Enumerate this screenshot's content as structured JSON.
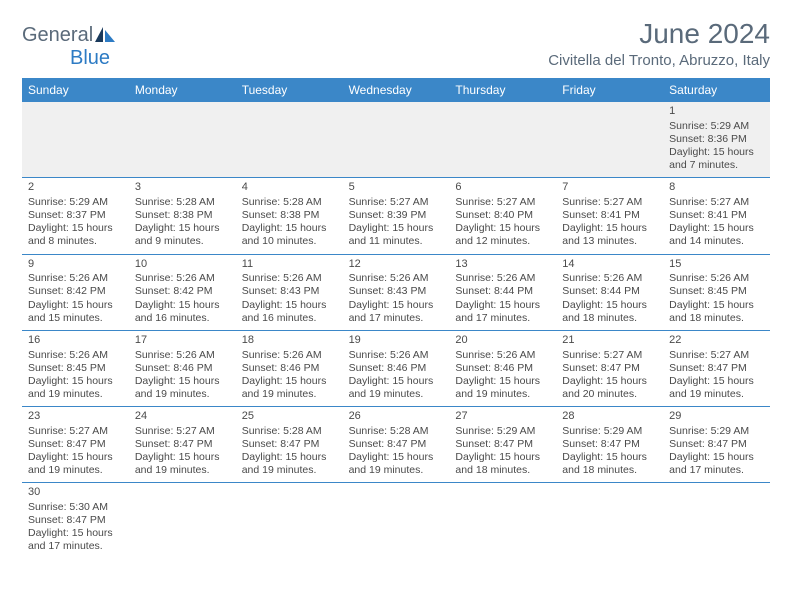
{
  "logo": {
    "text1": "General",
    "text2": "Blue"
  },
  "title": "June 2024",
  "location": "Civitella del Tronto, Abruzzo, Italy",
  "colors": {
    "header_bg": "#3b87c8",
    "header_text": "#ffffff",
    "border": "#3b87c8",
    "text": "#4a4a4a",
    "title_text": "#5a6a7a",
    "first_row_bg": "#f0f0f0"
  },
  "weekdays": [
    "Sunday",
    "Monday",
    "Tuesday",
    "Wednesday",
    "Thursday",
    "Friday",
    "Saturday"
  ],
  "weeks": [
    [
      null,
      null,
      null,
      null,
      null,
      null,
      {
        "n": "1",
        "sr": "5:29 AM",
        "ss": "8:36 PM",
        "dh": "15",
        "dm": "7"
      }
    ],
    [
      {
        "n": "2",
        "sr": "5:29 AM",
        "ss": "8:37 PM",
        "dh": "15",
        "dm": "8"
      },
      {
        "n": "3",
        "sr": "5:28 AM",
        "ss": "8:38 PM",
        "dh": "15",
        "dm": "9"
      },
      {
        "n": "4",
        "sr": "5:28 AM",
        "ss": "8:38 PM",
        "dh": "15",
        "dm": "10"
      },
      {
        "n": "5",
        "sr": "5:27 AM",
        "ss": "8:39 PM",
        "dh": "15",
        "dm": "11"
      },
      {
        "n": "6",
        "sr": "5:27 AM",
        "ss": "8:40 PM",
        "dh": "15",
        "dm": "12"
      },
      {
        "n": "7",
        "sr": "5:27 AM",
        "ss": "8:41 PM",
        "dh": "15",
        "dm": "13"
      },
      {
        "n": "8",
        "sr": "5:27 AM",
        "ss": "8:41 PM",
        "dh": "15",
        "dm": "14"
      }
    ],
    [
      {
        "n": "9",
        "sr": "5:26 AM",
        "ss": "8:42 PM",
        "dh": "15",
        "dm": "15"
      },
      {
        "n": "10",
        "sr": "5:26 AM",
        "ss": "8:42 PM",
        "dh": "15",
        "dm": "16"
      },
      {
        "n": "11",
        "sr": "5:26 AM",
        "ss": "8:43 PM",
        "dh": "15",
        "dm": "16"
      },
      {
        "n": "12",
        "sr": "5:26 AM",
        "ss": "8:43 PM",
        "dh": "15",
        "dm": "17"
      },
      {
        "n": "13",
        "sr": "5:26 AM",
        "ss": "8:44 PM",
        "dh": "15",
        "dm": "17"
      },
      {
        "n": "14",
        "sr": "5:26 AM",
        "ss": "8:44 PM",
        "dh": "15",
        "dm": "18"
      },
      {
        "n": "15",
        "sr": "5:26 AM",
        "ss": "8:45 PM",
        "dh": "15",
        "dm": "18"
      }
    ],
    [
      {
        "n": "16",
        "sr": "5:26 AM",
        "ss": "8:45 PM",
        "dh": "15",
        "dm": "19"
      },
      {
        "n": "17",
        "sr": "5:26 AM",
        "ss": "8:46 PM",
        "dh": "15",
        "dm": "19"
      },
      {
        "n": "18",
        "sr": "5:26 AM",
        "ss": "8:46 PM",
        "dh": "15",
        "dm": "19"
      },
      {
        "n": "19",
        "sr": "5:26 AM",
        "ss": "8:46 PM",
        "dh": "15",
        "dm": "19"
      },
      {
        "n": "20",
        "sr": "5:26 AM",
        "ss": "8:46 PM",
        "dh": "15",
        "dm": "19"
      },
      {
        "n": "21",
        "sr": "5:27 AM",
        "ss": "8:47 PM",
        "dh": "15",
        "dm": "20"
      },
      {
        "n": "22",
        "sr": "5:27 AM",
        "ss": "8:47 PM",
        "dh": "15",
        "dm": "19"
      }
    ],
    [
      {
        "n": "23",
        "sr": "5:27 AM",
        "ss": "8:47 PM",
        "dh": "15",
        "dm": "19"
      },
      {
        "n": "24",
        "sr": "5:27 AM",
        "ss": "8:47 PM",
        "dh": "15",
        "dm": "19"
      },
      {
        "n": "25",
        "sr": "5:28 AM",
        "ss": "8:47 PM",
        "dh": "15",
        "dm": "19"
      },
      {
        "n": "26",
        "sr": "5:28 AM",
        "ss": "8:47 PM",
        "dh": "15",
        "dm": "19"
      },
      {
        "n": "27",
        "sr": "5:29 AM",
        "ss": "8:47 PM",
        "dh": "15",
        "dm": "18"
      },
      {
        "n": "28",
        "sr": "5:29 AM",
        "ss": "8:47 PM",
        "dh": "15",
        "dm": "18"
      },
      {
        "n": "29",
        "sr": "5:29 AM",
        "ss": "8:47 PM",
        "dh": "15",
        "dm": "17"
      }
    ],
    [
      {
        "n": "30",
        "sr": "5:30 AM",
        "ss": "8:47 PM",
        "dh": "15",
        "dm": "17"
      },
      null,
      null,
      null,
      null,
      null,
      null
    ]
  ],
  "labels": {
    "sunrise": "Sunrise:",
    "sunset": "Sunset:",
    "daylight": "Daylight:",
    "hours": "hours",
    "and": "and",
    "minutes": "minutes."
  }
}
